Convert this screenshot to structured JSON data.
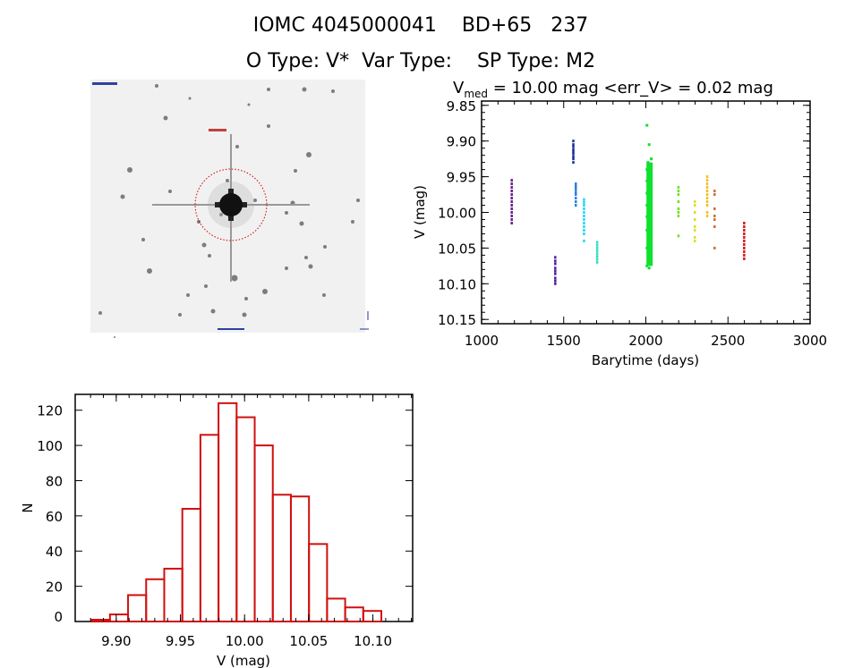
{
  "header": {
    "title": "IOMC 4045000041    BD+65   237",
    "subtitle": "O Type: V*  Var Type:    SP Type: M2"
  },
  "finder_image": {
    "target_circle_color": "#d00000"
  },
  "chart_data": [
    {
      "type": "scatter",
      "title_main": "V",
      "title_sub": "med",
      "title_rest": " = 10.00 mag <err_V> = 0.02 mag",
      "xlabel": "Barytime (days)",
      "ylabel": "V (mag)",
      "xlim": [
        1000,
        3000
      ],
      "ylim": [
        10.156,
        9.844
      ],
      "y_inverted": true,
      "xticks": [
        "1000",
        "1500",
        "2000",
        "2500",
        "3000"
      ],
      "yticks": [
        "9.85",
        "9.90",
        "9.95",
        "10.00",
        "10.05",
        "10.10",
        "10.15"
      ],
      "grid": false,
      "series": [
        {
          "color": "#6a1b8a",
          "x": 1185,
          "y": [
            9.955,
            9.96,
            9.965,
            9.97,
            9.975,
            9.98,
            9.985,
            9.99,
            9.995,
            10.0,
            10.005,
            10.01,
            10.015
          ]
        },
        {
          "color": "#4b1fa0",
          "x": 1450,
          "y": [
            10.063,
            10.068,
            10.072,
            10.078,
            10.082,
            10.086,
            10.092,
            10.096,
            10.1
          ]
        },
        {
          "color": "#1a2f9a",
          "x": 1560,
          "y": [
            9.9,
            9.905,
            9.908,
            9.912,
            9.915,
            9.918,
            9.922,
            9.925,
            9.93
          ]
        },
        {
          "color": "#2a7fe0",
          "x": 1575,
          "y": [
            9.96,
            9.962,
            9.965,
            9.968,
            9.972,
            9.975,
            9.98,
            9.985,
            9.99
          ]
        },
        {
          "color": "#22d8f0",
          "x": 1625,
          "y": [
            9.982,
            9.986,
            9.99,
            9.995,
            10.0,
            10.005,
            10.01,
            10.015,
            10.02,
            10.025,
            10.03,
            10.04
          ]
        },
        {
          "color": "#33e0c0",
          "x": 1705,
          "y": [
            10.042,
            10.046,
            10.05,
            10.054,
            10.058,
            10.062,
            10.066,
            10.07
          ]
        },
        {
          "color": "#10e030",
          "x": 2020,
          "y": [
            9.878,
            9.905,
            9.925,
            9.93,
            9.935,
            9.94,
            9.943,
            9.946,
            9.95,
            9.953,
            9.956,
            9.96,
            9.963,
            9.966,
            9.97,
            9.973,
            9.976,
            9.98,
            9.983,
            9.986,
            9.99,
            9.993,
            9.996,
            10.0,
            10.003,
            10.006,
            10.01,
            10.013,
            10.016,
            10.02,
            10.025,
            10.03,
            10.035,
            10.04,
            10.045,
            10.05,
            10.055,
            10.06,
            10.065,
            10.07,
            10.075,
            10.078
          ]
        },
        {
          "color": "#70e020",
          "x": 2200,
          "y": [
            9.965,
            9.97,
            9.975,
            9.985,
            9.995,
            10.0,
            10.005,
            10.033
          ]
        },
        {
          "color": "#d8e020",
          "x": 2300,
          "y": [
            9.985,
            9.99,
            10.0,
            10.01,
            10.02,
            10.025,
            10.035,
            10.04
          ]
        },
        {
          "color": "#f0c020",
          "x": 2375,
          "y": [
            9.95,
            9.955,
            9.96,
            9.965,
            9.97,
            9.975,
            9.98,
            9.985,
            9.99,
            10.0,
            10.005
          ]
        },
        {
          "color": "#c87030",
          "x": 2420,
          "y": [
            9.97,
            9.975,
            9.995,
            10.005,
            10.01,
            10.02,
            10.05
          ]
        },
        {
          "color": "#d01818",
          "x": 2600,
          "y": [
            10.015,
            10.02,
            10.025,
            10.03,
            10.035,
            10.04,
            10.045,
            10.05,
            10.055,
            10.06,
            10.065
          ]
        }
      ]
    },
    {
      "type": "bar",
      "subtype": "histogram",
      "xlabel": "V (mag)",
      "ylabel": "N",
      "xlim": [
        9.868,
        10.131
      ],
      "ylim": [
        0,
        129
      ],
      "xticks": [
        "9.90",
        "9.95",
        "10.00",
        "10.05",
        "10.10"
      ],
      "yticks": [
        "0",
        "20",
        "40",
        "60",
        "80",
        "100",
        "120"
      ],
      "bin_start": 9.881,
      "bin_width": 0.0141,
      "counts": [
        1,
        4,
        15,
        24,
        30,
        64,
        106,
        124,
        116,
        100,
        72,
        71,
        44,
        13,
        8,
        6
      ],
      "color": "#d01010",
      "grid": false
    }
  ]
}
